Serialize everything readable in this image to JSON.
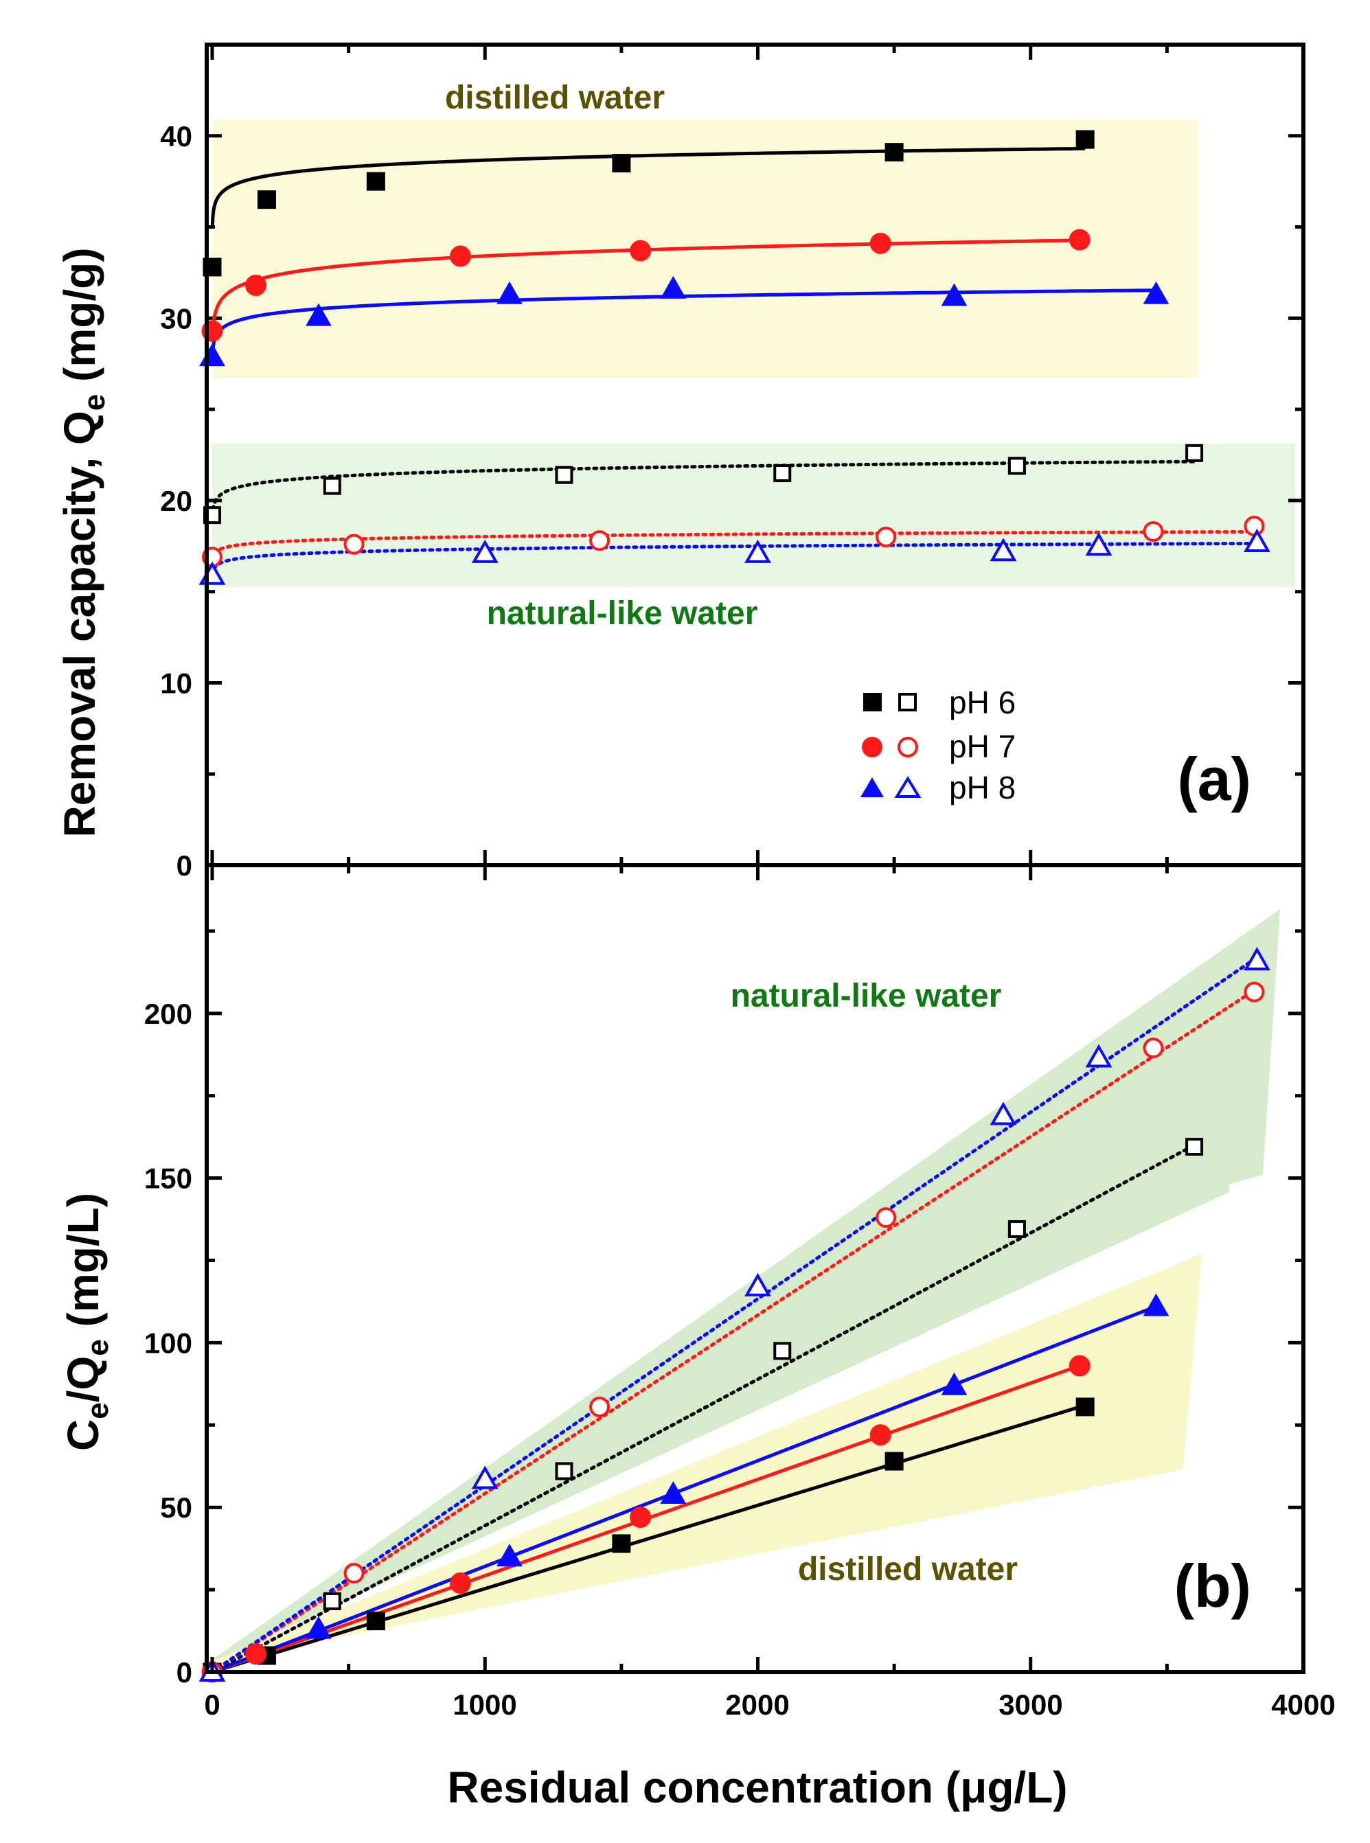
{
  "figure": {
    "x_axis_label": "Residual concentration (μg/L)",
    "x_ticks": [
      "0",
      "1000",
      "2000",
      "3000",
      "4000"
    ]
  },
  "chart_data": [
    {
      "id": "a",
      "type": "scatter",
      "panel_label": "(a)",
      "ylabel": {
        "prefix": "Removal capacity, Q",
        "sub": "e",
        "suffix": " (mg/g)"
      },
      "xlabel": "Residual concentration (μg/L)",
      "xlim": [
        0,
        4000
      ],
      "ylim": [
        0,
        45
      ],
      "y_ticks": [
        "0",
        "10",
        "20",
        "30",
        "40"
      ],
      "x_ticks": [
        "0",
        "1000",
        "2000",
        "3000",
        "4000"
      ],
      "annotations": [
        {
          "text": "distilled water",
          "group": "distilled"
        },
        {
          "text": "natural-like water",
          "group": "natural"
        }
      ],
      "legend": [
        {
          "label": "pH 6",
          "color": "#000000",
          "marker": "square"
        },
        {
          "label": "pH 7",
          "color": "#ff1a1a",
          "marker": "circle"
        },
        {
          "label": "pH 8",
          "color": "#0a0aff",
          "marker": "triangle"
        }
      ],
      "series": [
        {
          "name": "pH 6 distilled water",
          "color": "#000000",
          "marker": "square",
          "filled": true,
          "x": [
            0,
            200,
            600,
            1500,
            2500,
            3200
          ],
          "y": [
            32.8,
            36.5,
            37.5,
            38.5,
            39.1,
            39.8
          ],
          "fit": {
            "kind": "power",
            "a": 35.1,
            "b": 0.014,
            "x_end": 3200,
            "style": "solid"
          }
        },
        {
          "name": "pH 7 distilled water",
          "color": "#ff1a1a",
          "marker": "circle",
          "filled": true,
          "x": [
            0,
            160,
            910,
            1570,
            2450,
            3180
          ],
          "y": [
            29.3,
            31.8,
            33.4,
            33.7,
            34.1,
            34.3
          ],
          "fit": {
            "kind": "power",
            "a": 28.7,
            "b": 0.022,
            "x_end": 3180,
            "style": "solid"
          }
        },
        {
          "name": "pH 8 distilled water",
          "color": "#0a0aff",
          "marker": "triangle",
          "filled": true,
          "x": [
            0,
            390,
            1090,
            1690,
            2720,
            3460
          ],
          "y": [
            27.9,
            30.1,
            31.3,
            31.6,
            31.2,
            31.3
          ],
          "fit": {
            "kind": "power",
            "a": 27.9,
            "b": 0.015,
            "x_end": 3460,
            "style": "solid"
          }
        },
        {
          "name": "pH 6 natural-like water",
          "color": "#000000",
          "marker": "square",
          "filled": false,
          "x": [
            0,
            440,
            1290,
            2090,
            2950,
            3600
          ],
          "y": [
            19.2,
            20.8,
            21.4,
            21.5,
            21.9,
            22.6
          ],
          "fit": {
            "kind": "power",
            "a": 19.1,
            "b": 0.018,
            "x_end": 3600,
            "style": "dotted"
          }
        },
        {
          "name": "pH 7 natural-like water",
          "color": "#ff1a1a",
          "marker": "circle",
          "filled": false,
          "x": [
            0,
            520,
            1420,
            2470,
            3450,
            3820
          ],
          "y": [
            16.9,
            17.6,
            17.8,
            18.0,
            18.3,
            18.6
          ],
          "fit": {
            "kind": "power",
            "a": 16.7,
            "b": 0.011,
            "x_end": 3820,
            "style": "dotted"
          }
        },
        {
          "name": "pH 8 natural-like water",
          "color": "#0a0aff",
          "marker": "triangle",
          "filled": false,
          "x": [
            0,
            1000,
            2000,
            2900,
            3250,
            3830
          ],
          "y": [
            15.9,
            17.1,
            17.1,
            17.2,
            17.5,
            17.7
          ],
          "fit": {
            "kind": "power",
            "a": 15.85,
            "b": 0.013,
            "x_end": 3830,
            "style": "dotted"
          }
        }
      ]
    },
    {
      "id": "b",
      "type": "scatter",
      "panel_label": "(b)",
      "ylabel": {
        "prefix": "C",
        "sub": "e",
        "mid": "/Q",
        "sub2": "e",
        "suffix": " (mg/L)"
      },
      "xlabel": "Residual concentration (μg/L)",
      "xlim": [
        0,
        4000
      ],
      "ylim": [
        0,
        245
      ],
      "y_ticks": [
        "0",
        "50",
        "100",
        "150",
        "200"
      ],
      "x_ticks": [
        "0",
        "1000",
        "2000",
        "3000",
        "4000"
      ],
      "annotations": [
        {
          "text": "natural-like water",
          "group": "natural"
        },
        {
          "text": "distilled water",
          "group": "distilled"
        }
      ],
      "series": [
        {
          "name": "pH 6 distilled water",
          "color": "#000000",
          "marker": "square",
          "filled": true,
          "x": [
            0,
            200,
            600,
            1500,
            2500,
            3200
          ],
          "y": [
            0,
            5,
            15.5,
            39,
            64,
            80.5
          ],
          "fit": {
            "kind": "linear",
            "x0": 0,
            "y0": 0,
            "x1": 3200,
            "y1": 81,
            "style": "solid"
          }
        },
        {
          "name": "pH 7 distilled water",
          "color": "#ff1a1a",
          "marker": "circle",
          "filled": true,
          "x": [
            0,
            160,
            910,
            1570,
            2450,
            3180
          ],
          "y": [
            0,
            5.5,
            27,
            47,
            72,
            93
          ],
          "fit": {
            "kind": "linear",
            "x0": 0,
            "y0": 0,
            "x1": 3180,
            "y1": 93,
            "style": "solid"
          }
        },
        {
          "name": "pH 8 distilled water",
          "color": "#0a0aff",
          "marker": "triangle",
          "filled": true,
          "x": [
            0,
            390,
            1090,
            1690,
            2720,
            3460
          ],
          "y": [
            0,
            13,
            35,
            54,
            87,
            111
          ],
          "fit": {
            "kind": "linear",
            "x0": 0,
            "y0": 0,
            "x1": 3460,
            "y1": 111,
            "style": "solid"
          }
        },
        {
          "name": "pH 6 natural-like water",
          "color": "#000000",
          "marker": "square",
          "filled": false,
          "x": [
            0,
            440,
            1290,
            2090,
            2950,
            3600
          ],
          "y": [
            0,
            21.5,
            61,
            97.5,
            134.5,
            159.5
          ],
          "fit": {
            "kind": "linear",
            "x0": 0,
            "y0": 0,
            "x1": 3600,
            "y1": 160,
            "style": "dotted"
          }
        },
        {
          "name": "pH 7 natural-like water",
          "color": "#ff1a1a",
          "marker": "circle",
          "filled": false,
          "x": [
            0,
            520,
            1420,
            2470,
            3450,
            3820
          ],
          "y": [
            0,
            30,
            80.5,
            138,
            189.5,
            206.5
          ],
          "fit": {
            "kind": "linear",
            "x0": 0,
            "y0": 0,
            "x1": 3820,
            "y1": 207,
            "style": "dotted"
          }
        },
        {
          "name": "pH 8 natural-like water",
          "color": "#0a0aff",
          "marker": "triangle",
          "filled": false,
          "x": [
            0,
            1000,
            2000,
            2900,
            3250,
            3830
          ],
          "y": [
            0,
            58.5,
            117,
            169,
            186.5,
            216
          ],
          "fit": {
            "kind": "linear",
            "x0": 0,
            "y0": 0,
            "x1": 3830,
            "y1": 217,
            "style": "dotted"
          }
        }
      ]
    }
  ]
}
